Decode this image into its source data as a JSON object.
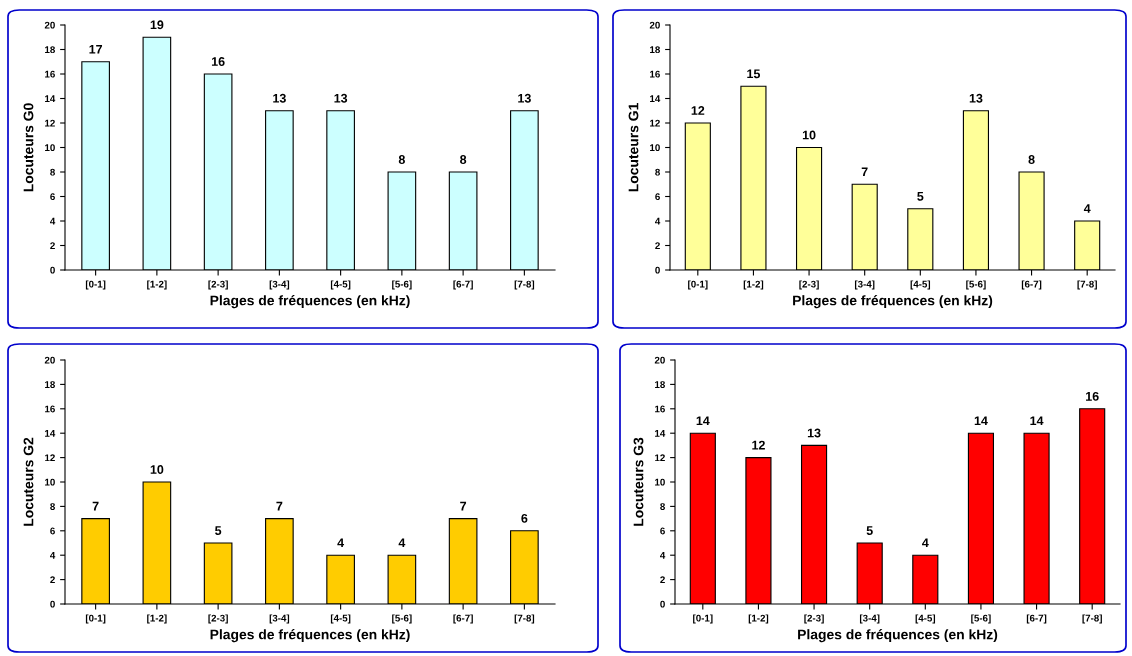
{
  "chart_data": [
    {
      "type": "bar",
      "xlabel": "Plages de fréquences (en kHz)",
      "ylabel": "Locuteurs G0",
      "categories": [
        "[0-1]",
        "[1-2]",
        "[2-3]",
        "[3-4]",
        "[4-5]",
        "[5-6]",
        "[6-7]",
        "[7-8]"
      ],
      "values": [
        17,
        19,
        16,
        13,
        13,
        8,
        8,
        13
      ],
      "color": "#ccffff",
      "ylim": [
        0,
        20
      ],
      "yticks": [
        0,
        2,
        4,
        6,
        8,
        10,
        12,
        14,
        16,
        18,
        20
      ],
      "data_labels": true,
      "grid": false,
      "legend": false
    },
    {
      "type": "bar",
      "xlabel": "Plages de fréquences (en kHz)",
      "ylabel": "Locuteurs G1",
      "categories": [
        "[0-1]",
        "[1-2]",
        "[2-3]",
        "[3-4]",
        "[4-5]",
        "[5-6]",
        "[6-7]",
        "[7-8]"
      ],
      "values": [
        12,
        15,
        10,
        7,
        5,
        13,
        8,
        4
      ],
      "color": "#ffff99",
      "ylim": [
        0,
        20
      ],
      "yticks": [
        0,
        2,
        4,
        6,
        8,
        10,
        12,
        14,
        16,
        18,
        20
      ],
      "data_labels": true,
      "grid": false,
      "legend": false
    },
    {
      "type": "bar",
      "xlabel": "Plages de fréquences (en kHz)",
      "ylabel": "Locuteurs G2",
      "categories": [
        "[0-1]",
        "[1-2]",
        "[2-3]",
        "[3-4]",
        "[4-5]",
        "[5-6]",
        "[6-7]",
        "[7-8]"
      ],
      "values": [
        7,
        10,
        5,
        7,
        4,
        4,
        7,
        6
      ],
      "color": "#ffcc00",
      "ylim": [
        0,
        20
      ],
      "yticks": [
        0,
        2,
        4,
        6,
        8,
        10,
        12,
        14,
        16,
        18,
        20
      ],
      "data_labels": true,
      "grid": false,
      "legend": false
    },
    {
      "type": "bar",
      "xlabel": "Plages de fréquences (en kHz)",
      "ylabel": "Locuteurs G3",
      "categories": [
        "[0-1]",
        "[1-2]",
        "[2-3]",
        "[3-4]",
        "[4-5]",
        "[5-6]",
        "[6-7]",
        "[7-8]"
      ],
      "values": [
        14,
        12,
        13,
        5,
        4,
        14,
        14,
        16
      ],
      "color": "#ff0000",
      "ylim": [
        0,
        20
      ],
      "yticks": [
        0,
        2,
        4,
        6,
        8,
        10,
        12,
        14,
        16,
        18,
        20
      ],
      "data_labels": true,
      "grid": false,
      "legend": false
    }
  ]
}
